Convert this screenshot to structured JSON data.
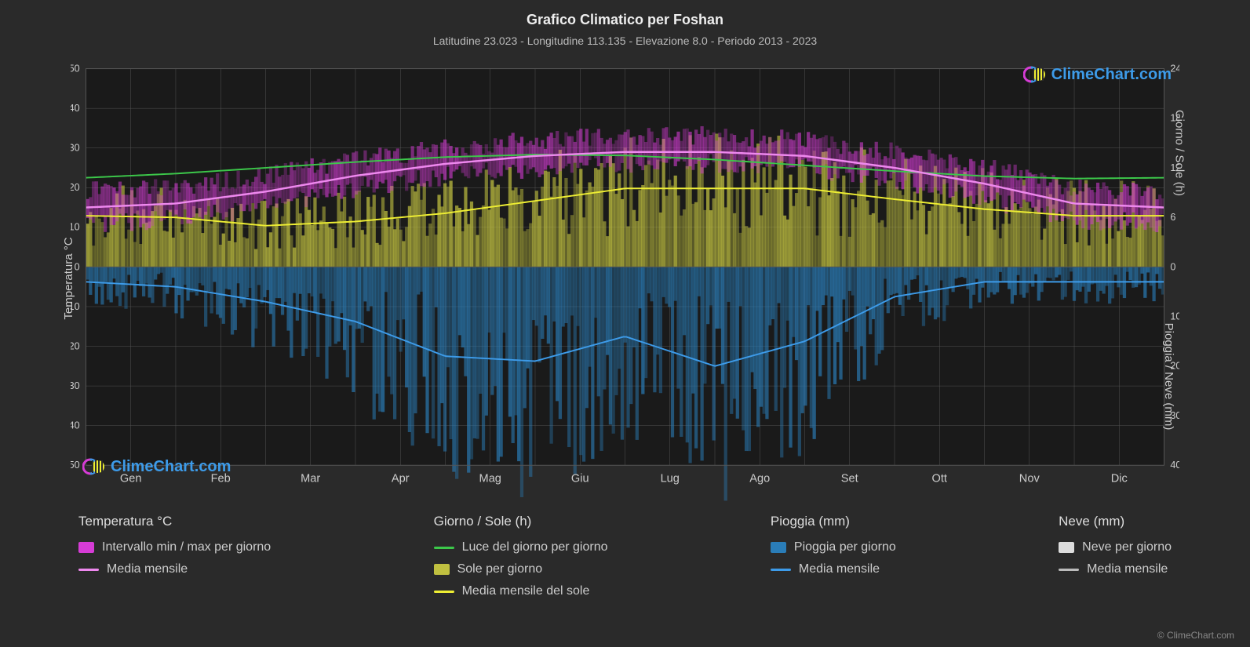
{
  "title": "Grafico Climatico per Foshan",
  "subtitle": "Latitudine 23.023 - Longitudine 113.135 - Elevazione 8.0 - Periodo 2013 - 2023",
  "watermark_text": "ClimeChart.com",
  "copyright": "© ClimeChart.com",
  "axis_labels": {
    "left": "Temperatura °C",
    "right_top": "Giorno / Sole (h)",
    "right_bottom": "Pioggia / Neve (mm)"
  },
  "months": [
    "Gen",
    "Feb",
    "Mar",
    "Apr",
    "Mag",
    "Giu",
    "Lug",
    "Ago",
    "Set",
    "Ott",
    "Nov",
    "Dic"
  ],
  "y_left": {
    "min": -50,
    "max": 50,
    "step": 10
  },
  "y_right_top": {
    "min": 0,
    "max": 24,
    "step": 6
  },
  "y_right_bottom": {
    "min": 0,
    "max": 40,
    "step": 10
  },
  "chart": {
    "background_color": "#2a2a2a",
    "grid_color": "#555555",
    "grid_width": 0.5,
    "plot_bg": "#1a1a1a",
    "temp_range_color": "#d63cd6",
    "temp_mean_color": "#ee88ee",
    "daylight_color": "#3cc84a",
    "sun_bar_color": "#c0c040",
    "sun_mean_color": "#eeee33",
    "rain_bar_color": "#2a7db8",
    "rain_mean_color": "#3d9be9",
    "snow_bar_color": "#dddddd",
    "snow_mean_color": "#bbbbbb",
    "tick_font_size": 13,
    "tick_color": "#cccccc"
  },
  "series": {
    "temp_min_monthly": [
      11,
      12,
      15,
      20,
      23,
      25,
      26,
      26,
      25,
      22,
      17,
      12
    ],
    "temp_max_monthly": [
      19,
      20,
      23,
      27,
      30,
      32,
      33,
      33,
      32,
      29,
      25,
      20
    ],
    "temp_mean_monthly": [
      15,
      16,
      19,
      23,
      26,
      28,
      29,
      29,
      28,
      25,
      21,
      16
    ],
    "daylight_monthly_h": [
      10.8,
      11.3,
      12.0,
      12.7,
      13.3,
      13.6,
      13.5,
      13.0,
      12.3,
      11.6,
      11.0,
      10.7
    ],
    "sun_mean_monthly_h": [
      6.2,
      6.0,
      5.0,
      5.5,
      6.5,
      8.0,
      9.5,
      9.5,
      9.5,
      8.2,
      7.0,
      6.2
    ],
    "rain_mean_monthly_mm": [
      3,
      4,
      7,
      11,
      18,
      19,
      14,
      20,
      15,
      6,
      3,
      3
    ]
  },
  "daily_density_days": 365,
  "legend": {
    "temp_heading": "Temperatura °C",
    "temp_range": "Intervallo min / max per giorno",
    "temp_mean": "Media mensile",
    "day_heading": "Giorno / Sole (h)",
    "daylight": "Luce del giorno per giorno",
    "sun_day": "Sole per giorno",
    "sun_mean": "Media mensile del sole",
    "rain_heading": "Pioggia (mm)",
    "rain_day": "Pioggia per giorno",
    "rain_mean": "Media mensile",
    "snow_heading": "Neve (mm)",
    "snow_day": "Neve per giorno",
    "snow_mean": "Media mensile"
  }
}
